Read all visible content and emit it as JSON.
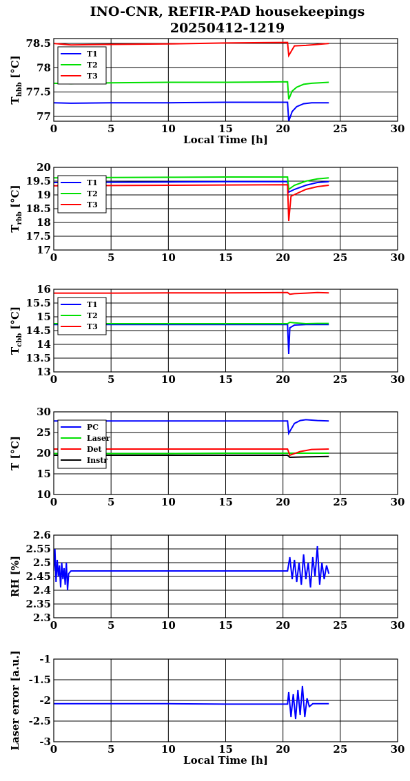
{
  "figure": {
    "title_line1": "INO-CNR, REFIR-PAD housekeepings",
    "title_line2": "20250412-1219",
    "colors": {
      "blue": "#0000ff",
      "green": "#00e000",
      "red": "#ff0000",
      "black": "#000000"
    }
  },
  "chart_data": [
    {
      "type": "line",
      "xlabel": "Local Time [h]",
      "ylabel": "T",
      "ylabel_sub": "hbb",
      "ylabel_unit": "[°C]",
      "xlim": [
        0,
        30
      ],
      "ylim": [
        76.9,
        78.6
      ],
      "xticks": [
        0,
        5,
        10,
        15,
        20,
        25,
        30
      ],
      "yticks": [
        77,
        77.5,
        78,
        78.5
      ],
      "ytick_labels": [
        "77",
        "77.5",
        "78",
        "78.5"
      ],
      "grid": true,
      "legend": "top-left",
      "series": [
        {
          "name": "T1",
          "color": "#0000ff",
          "x": [
            0,
            1.5,
            5,
            10,
            15,
            20.4,
            20.5,
            20.8,
            21.2,
            21.8,
            22.5,
            23.2,
            24
          ],
          "y": [
            77.28,
            77.27,
            77.28,
            77.28,
            77.29,
            77.29,
            76.9,
            77.1,
            77.2,
            77.26,
            77.28,
            77.28,
            77.28
          ]
        },
        {
          "name": "T2",
          "color": "#00e000",
          "x": [
            0,
            1.5,
            5,
            10,
            15,
            20.4,
            20.5,
            20.8,
            21.2,
            21.8,
            22.5,
            23.2,
            24
          ],
          "y": [
            77.68,
            77.67,
            77.69,
            77.7,
            77.7,
            77.71,
            77.35,
            77.52,
            77.6,
            77.66,
            77.68,
            77.69,
            77.7
          ]
        },
        {
          "name": "T3",
          "color": "#ff0000",
          "x": [
            0,
            1.5,
            5,
            10,
            15,
            20.4,
            20.5,
            21,
            22,
            23,
            24
          ],
          "y": [
            78.5,
            78.47,
            78.48,
            78.49,
            78.51,
            78.52,
            78.25,
            78.45,
            78.46,
            78.48,
            78.5
          ]
        }
      ]
    },
    {
      "type": "line",
      "xlabel": "",
      "ylabel": "T",
      "ylabel_sub": "rbb",
      "ylabel_unit": "[°C]",
      "xlim": [
        0,
        30
      ],
      "ylim": [
        17,
        20
      ],
      "xticks": [
        0,
        5,
        10,
        15,
        20,
        25,
        30
      ],
      "yticks": [
        17,
        17.5,
        18,
        18.5,
        19,
        19.5,
        20
      ],
      "ytick_labels": [
        "17",
        "17.5",
        "18",
        "18.5",
        "19",
        "19.5",
        "20"
      ],
      "grid": true,
      "legend": "top-left",
      "series": [
        {
          "name": "T1",
          "color": "#0000ff",
          "x": [
            0,
            5,
            10,
            15,
            20.4,
            20.5,
            21,
            22,
            23,
            24
          ],
          "y": [
            19.45,
            19.46,
            19.47,
            19.48,
            19.48,
            19.1,
            19.2,
            19.35,
            19.45,
            19.48
          ]
        },
        {
          "name": "T2",
          "color": "#00e000",
          "x": [
            0,
            5,
            10,
            15,
            20.4,
            20.5,
            21,
            22,
            23,
            24
          ],
          "y": [
            19.62,
            19.63,
            19.64,
            19.65,
            19.65,
            19.2,
            19.35,
            19.5,
            19.58,
            19.62
          ]
        },
        {
          "name": "T3",
          "color": "#ff0000",
          "x": [
            0,
            5,
            10,
            15,
            20.4,
            20.5,
            20.7,
            21.2,
            22,
            23,
            24
          ],
          "y": [
            19.33,
            19.34,
            19.35,
            19.36,
            19.37,
            18.05,
            18.95,
            19.05,
            19.2,
            19.3,
            19.35
          ]
        }
      ]
    },
    {
      "type": "line",
      "xlabel": "",
      "ylabel": "T",
      "ylabel_sub": "cbb",
      "ylabel_unit": "[°C]",
      "xlim": [
        0,
        30
      ],
      "ylim": [
        13,
        16
      ],
      "xticks": [
        0,
        5,
        10,
        15,
        20,
        25,
        30
      ],
      "yticks": [
        13,
        13.5,
        14,
        14.5,
        15,
        15.5,
        16
      ],
      "ytick_labels": [
        "13",
        "13.5",
        "14",
        "14.5",
        "15",
        "15.5",
        "16"
      ],
      "grid": true,
      "legend": "top-left",
      "series": [
        {
          "name": "T1",
          "color": "#0000ff",
          "x": [
            0,
            5,
            10,
            15,
            20.4,
            20.5,
            20.6,
            21,
            22,
            23,
            24
          ],
          "y": [
            14.72,
            14.72,
            14.72,
            14.72,
            14.72,
            13.65,
            14.6,
            14.7,
            14.72,
            14.72,
            14.72
          ]
        },
        {
          "name": "T2",
          "color": "#00e000",
          "x": [
            0,
            5,
            10,
            15,
            20.4,
            20.6,
            21,
            22,
            23,
            24
          ],
          "y": [
            14.75,
            14.75,
            14.75,
            14.75,
            14.75,
            14.8,
            14.78,
            14.75,
            14.76,
            14.76
          ]
        },
        {
          "name": "T3",
          "color": "#ff0000",
          "x": [
            0,
            5,
            10,
            15,
            20.4,
            20.6,
            21,
            22,
            23,
            24
          ],
          "y": [
            15.86,
            15.86,
            15.87,
            15.87,
            15.88,
            15.82,
            15.84,
            15.86,
            15.88,
            15.87
          ]
        }
      ]
    },
    {
      "type": "line",
      "xlabel": "",
      "ylabel": "T [°C]",
      "ylabel_sub": "",
      "ylabel_unit": "",
      "xlim": [
        0,
        30
      ],
      "ylim": [
        10,
        30
      ],
      "xticks": [
        0,
        5,
        10,
        15,
        20,
        25,
        30
      ],
      "yticks": [
        10,
        15,
        20,
        25,
        30
      ],
      "ytick_labels": [
        "10",
        "15",
        "20",
        "25",
        "30"
      ],
      "grid": true,
      "legend": "top-left",
      "series": [
        {
          "name": "PC",
          "color": "#0000ff",
          "x": [
            0,
            5,
            10,
            15,
            20.4,
            20.5,
            21,
            21.5,
            22,
            23,
            24
          ],
          "y": [
            27.8,
            27.8,
            27.8,
            27.8,
            27.8,
            24.8,
            27.2,
            27.9,
            28.1,
            27.9,
            27.8
          ]
        },
        {
          "name": "Laser",
          "color": "#00e000",
          "x": [
            0,
            5,
            10,
            15,
            20.4,
            21,
            22,
            23,
            24
          ],
          "y": [
            19.9,
            19.9,
            19.9,
            20.0,
            20.0,
            20.0,
            20.0,
            20.0,
            20.0
          ]
        },
        {
          "name": "Det",
          "color": "#ff0000",
          "x": [
            0,
            5,
            10,
            15,
            20.4,
            20.6,
            21.5,
            22.5,
            24
          ],
          "y": [
            21.0,
            21.0,
            21.0,
            21.0,
            21.0,
            19.5,
            20.4,
            20.9,
            21.0
          ]
        },
        {
          "name": "Instr",
          "color": "#000000",
          "x": [
            0,
            5,
            10,
            15,
            20.4,
            20.6,
            22,
            24
          ],
          "y": [
            19.5,
            19.5,
            19.5,
            19.5,
            19.5,
            19.0,
            19.1,
            19.2
          ]
        }
      ]
    },
    {
      "type": "line",
      "xlabel": "",
      "ylabel": "RH [%]",
      "ylabel_sub": "",
      "ylabel_unit": "",
      "xlim": [
        0,
        30
      ],
      "ylim": [
        2.3,
        2.6
      ],
      "xticks": [
        0,
        5,
        10,
        15,
        20,
        25,
        30
      ],
      "yticks": [
        2.3,
        2.35,
        2.4,
        2.45,
        2.5,
        2.55,
        2.6
      ],
      "ytick_labels": [
        "2.3",
        "2.35",
        "2.4",
        "2.45",
        "2.5",
        "2.55",
        "2.6"
      ],
      "grid": true,
      "legend": "none",
      "series": [
        {
          "color": "#0000ff",
          "x": [
            0,
            0.1,
            0.2,
            0.3,
            0.4,
            0.5,
            0.6,
            0.7,
            0.8,
            0.9,
            1.0,
            1.1,
            1.2,
            1.3,
            1.5,
            5,
            10,
            15,
            20.4,
            20.6,
            20.8,
            21.0,
            21.2,
            21.4,
            21.6,
            21.8,
            22.0,
            22.2,
            22.4,
            22.6,
            22.8,
            23.0,
            23.2,
            23.4,
            23.6,
            23.8,
            24.0
          ],
          "y": [
            2.47,
            2.55,
            2.43,
            2.51,
            2.45,
            2.49,
            2.41,
            2.5,
            2.44,
            2.48,
            2.42,
            2.5,
            2.4,
            2.46,
            2.47,
            2.47,
            2.47,
            2.47,
            2.47,
            2.52,
            2.44,
            2.51,
            2.43,
            2.5,
            2.42,
            2.53,
            2.44,
            2.5,
            2.41,
            2.52,
            2.45,
            2.56,
            2.42,
            2.5,
            2.44,
            2.49,
            2.46
          ]
        }
      ]
    },
    {
      "type": "line",
      "xlabel": "Local Time [h]",
      "ylabel": "Laser error [a.u.]",
      "ylabel_sub": "",
      "ylabel_unit": "",
      "xlim": [
        0,
        30
      ],
      "ylim": [
        -3,
        -1
      ],
      "xticks": [
        0,
        5,
        10,
        15,
        20,
        25,
        30
      ],
      "yticks": [
        -3,
        -2.5,
        -2,
        -1.5,
        -1
      ],
      "ytick_labels": [
        "-3",
        "-2.5",
        "-2",
        "-1.5",
        "-1"
      ],
      "grid": true,
      "legend": "none",
      "series": [
        {
          "color": "#0000ff",
          "x": [
            0,
            5,
            10,
            15,
            20.4,
            20.5,
            20.7,
            20.9,
            21.1,
            21.3,
            21.5,
            21.7,
            21.9,
            22.1,
            22.3,
            22.6,
            23,
            24
          ],
          "y": [
            -2.08,
            -2.08,
            -2.08,
            -2.09,
            -2.09,
            -1.8,
            -2.4,
            -1.85,
            -2.45,
            -1.75,
            -2.35,
            -1.65,
            -2.4,
            -1.95,
            -2.15,
            -2.08,
            -2.08,
            -2.08
          ]
        }
      ]
    }
  ]
}
